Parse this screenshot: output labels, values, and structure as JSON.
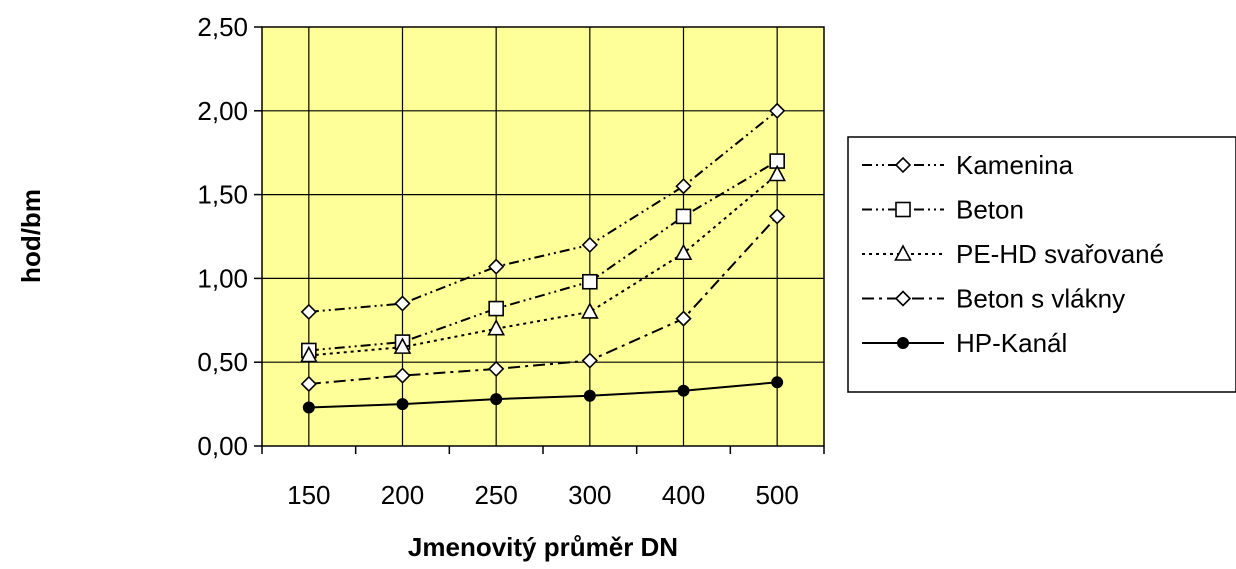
{
  "chart_data": {
    "type": "line",
    "title": "",
    "xlabel": "Jmenovitý průměr DN",
    "ylabel": "hod/bm",
    "categories": [
      "150",
      "200",
      "250",
      "300",
      "400",
      "500"
    ],
    "y_ticks": [
      "0,00",
      "0,50",
      "1,00",
      "1,50",
      "2,00",
      "2,50"
    ],
    "ylim": [
      0,
      2.5
    ],
    "grid": true,
    "legend_position": "right",
    "plot_background": "#FFFF99",
    "series": [
      {
        "name": "Kamenina",
        "values": [
          0.8,
          0.85,
          1.07,
          1.2,
          1.55,
          2.0
        ],
        "marker": "diamond",
        "dash": "dash-dot-dot"
      },
      {
        "name": "Beton",
        "values": [
          0.57,
          0.62,
          0.82,
          0.98,
          1.37,
          1.7
        ],
        "marker": "square",
        "dash": "dash-dot-dot"
      },
      {
        "name": "PE-HD svařované",
        "values": [
          0.54,
          0.59,
          0.7,
          0.8,
          1.15,
          1.62
        ],
        "marker": "triangle",
        "dash": "dotted"
      },
      {
        "name": "Beton s vlákny",
        "values": [
          0.37,
          0.42,
          0.46,
          0.51,
          0.76,
          1.37
        ],
        "marker": "diamond",
        "dash": "dash-dot"
      },
      {
        "name": "HP-Kanál",
        "values": [
          0.23,
          0.25,
          0.28,
          0.3,
          0.33,
          0.38
        ],
        "marker": "circle-filled",
        "dash": "solid"
      }
    ]
  }
}
